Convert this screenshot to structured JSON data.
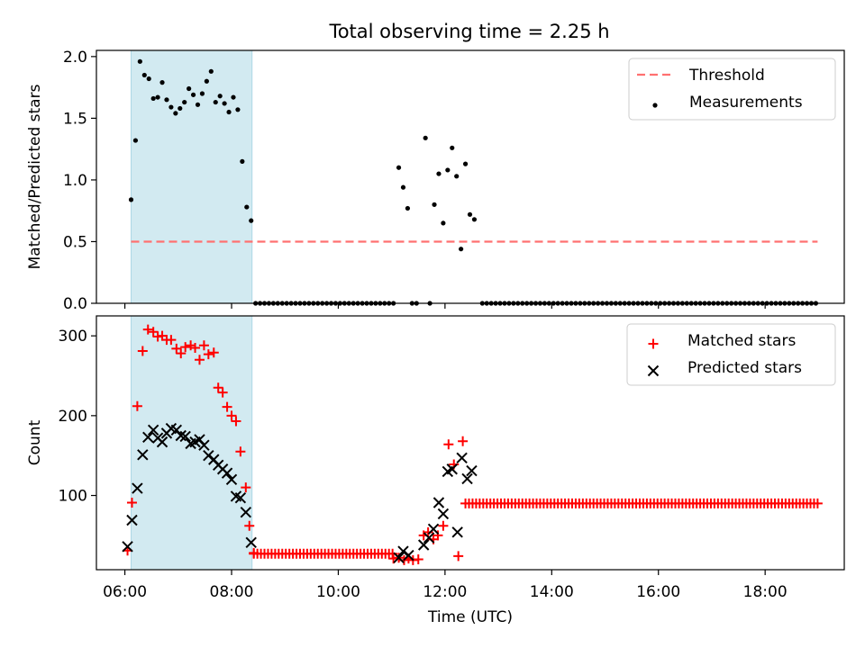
{
  "figure": {
    "title": "Total observing time = 2.25 h"
  },
  "chart_data": [
    {
      "type": "scatter",
      "panel": "top",
      "title": "Total observing time = 2.25 h",
      "xlabel": "",
      "ylabel": "Matched/Predicted stars",
      "xlim": [
        "05:28",
        "19:29"
      ],
      "ylim": [
        0,
        2.05
      ],
      "xticks": [
        "06:00",
        "08:00",
        "10:00",
        "12:00",
        "14:00",
        "16:00",
        "18:00"
      ],
      "yticks": [
        "0.0",
        "0.5",
        "1.0",
        "1.5",
        "2.0"
      ],
      "shaded_interval": [
        "06:07",
        "08:23"
      ],
      "shaded_color": "#add8e6",
      "legend": {
        "placement": "top-right",
        "entries": [
          "Threshold",
          "Measurements"
        ]
      },
      "series": [
        {
          "name": "Threshold",
          "kind": "line",
          "style": "dashed",
          "color": "#ff7070",
          "x": [
            "06:07",
            "18:59"
          ],
          "y": [
            0.5,
            0.5
          ]
        },
        {
          "name": "Measurements",
          "kind": "scatter",
          "marker": "dot",
          "color": "#000000",
          "points": [
            [
              "06:07",
              0.84
            ],
            [
              "06:12",
              1.32
            ],
            [
              "06:17",
              1.96
            ],
            [
              "06:22",
              1.85
            ],
            [
              "06:27",
              1.82
            ],
            [
              "06:32",
              1.66
            ],
            [
              "06:37",
              1.67
            ],
            [
              "06:42",
              1.79
            ],
            [
              "06:47",
              1.65
            ],
            [
              "06:52",
              1.59
            ],
            [
              "06:57",
              1.54
            ],
            [
              "07:02",
              1.58
            ],
            [
              "07:07",
              1.63
            ],
            [
              "07:12",
              1.74
            ],
            [
              "07:17",
              1.69
            ],
            [
              "07:22",
              1.61
            ],
            [
              "07:27",
              1.7
            ],
            [
              "07:32",
              1.8
            ],
            [
              "07:37",
              1.88
            ],
            [
              "07:42",
              1.63
            ],
            [
              "07:47",
              1.68
            ],
            [
              "07:52",
              1.62
            ],
            [
              "07:57",
              1.55
            ],
            [
              "08:02",
              1.67
            ],
            [
              "08:07",
              1.57
            ],
            [
              "08:12",
              1.15
            ],
            [
              "08:17",
              0.78
            ],
            [
              "08:22",
              0.67
            ],
            [
              "11:08",
              1.1
            ],
            [
              "11:13",
              0.94
            ],
            [
              "11:18",
              0.77
            ],
            [
              "11:38",
              1.34
            ],
            [
              "11:48",
              0.8
            ],
            [
              "11:53",
              1.05
            ],
            [
              "11:58",
              0.65
            ],
            [
              "12:03",
              1.08
            ],
            [
              "12:08",
              1.26
            ],
            [
              "12:13",
              1.03
            ],
            [
              "12:18",
              0.44
            ],
            [
              "12:23",
              1.13
            ],
            [
              "12:28",
              0.72
            ],
            [
              "12:33",
              0.68
            ],
            [
              "11:23",
              0.0
            ],
            [
              "11:28",
              0.0
            ],
            [
              "11:43",
              0.0
            ]
          ],
          "zero_run": {
            "from": "08:27",
            "to": "18:59",
            "step_minutes": 5,
            "value": 0.0,
            "gap": [
              "11:06",
              "12:37"
            ]
          }
        }
      ]
    },
    {
      "type": "scatter",
      "panel": "bottom",
      "xlabel": "Time (UTC)",
      "ylabel": "Count",
      "xlim": [
        "05:28",
        "19:29"
      ],
      "ylim": [
        7,
        325
      ],
      "xticks": [
        "06:00",
        "08:00",
        "10:00",
        "12:00",
        "14:00",
        "16:00",
        "18:00"
      ],
      "yticks": [
        "100",
        "200",
        "300"
      ],
      "shaded_interval": [
        "06:07",
        "08:23"
      ],
      "shaded_color": "#add8e6",
      "legend": {
        "placement": "top-right",
        "entries": [
          "Matched stars",
          "Predicted stars"
        ]
      },
      "series": [
        {
          "name": "Matched stars",
          "marker": "plus",
          "color": "#ff0000",
          "points": [
            [
              "06:03",
              31
            ],
            [
              "06:08",
              91
            ],
            [
              "06:14",
              212
            ],
            [
              "06:20",
              281
            ],
            [
              "06:26",
              308
            ],
            [
              "06:32",
              305
            ],
            [
              "06:37",
              299
            ],
            [
              "06:42",
              300
            ],
            [
              "06:47",
              295
            ],
            [
              "06:52",
              295
            ],
            [
              "06:58",
              284
            ],
            [
              "07:03",
              278
            ],
            [
              "07:08",
              286
            ],
            [
              "07:14",
              288
            ],
            [
              "07:19",
              285
            ],
            [
              "07:24",
              270
            ],
            [
              "07:29",
              288
            ],
            [
              "07:34",
              277
            ],
            [
              "07:40",
              279
            ],
            [
              "07:45",
              235
            ],
            [
              "07:50",
              229
            ],
            [
              "07:55",
              211
            ],
            [
              "08:00",
              200
            ],
            [
              "08:05",
              193
            ],
            [
              "08:10",
              155
            ],
            [
              "08:16",
              110
            ],
            [
              "08:20",
              62
            ],
            [
              "08:25",
              28
            ],
            [
              "11:02",
              21
            ],
            [
              "11:08",
              22
            ],
            [
              "11:14",
              19
            ],
            [
              "11:19",
              21
            ],
            [
              "11:24",
              19
            ],
            [
              "11:30",
              20
            ],
            [
              "11:36",
              50
            ],
            [
              "11:41",
              54
            ],
            [
              "11:47",
              45
            ],
            [
              "11:52",
              50
            ],
            [
              "11:58",
              62
            ],
            [
              "12:04",
              164
            ],
            [
              "12:10",
              139
            ],
            [
              "12:15",
              24
            ],
            [
              "12:20",
              168
            ]
          ],
          "flat_runs": [
            {
              "from": "08:25",
              "to": "11:02",
              "step_minutes": 4,
              "value": 27
            },
            {
              "from": "12:23",
              "to": "18:59",
              "step_minutes": 4,
              "value": 90
            }
          ]
        },
        {
          "name": "Predicted stars",
          "marker": "x",
          "color": "#000000",
          "points": [
            [
              "06:03",
              36
            ],
            [
              "06:08",
              69
            ],
            [
              "06:14",
              109
            ],
            [
              "06:20",
              151
            ],
            [
              "06:26",
              173
            ],
            [
              "06:32",
              182
            ],
            [
              "06:37",
              172
            ],
            [
              "06:42",
              167
            ],
            [
              "06:47",
              178
            ],
            [
              "06:52",
              184
            ],
            [
              "06:58",
              182
            ],
            [
              "07:03",
              175
            ],
            [
              "07:08",
              174
            ],
            [
              "07:14",
              165
            ],
            [
              "07:19",
              167
            ],
            [
              "07:24",
              170
            ],
            [
              "07:29",
              163
            ],
            [
              "07:34",
              150
            ],
            [
              "07:40",
              145
            ],
            [
              "07:45",
              138
            ],
            [
              "07:50",
              133
            ],
            [
              "07:55",
              128
            ],
            [
              "08:00",
              120
            ],
            [
              "08:05",
              99
            ],
            [
              "08:10",
              97
            ],
            [
              "08:16",
              79
            ],
            [
              "08:22",
              41
            ],
            [
              "11:08",
              22
            ],
            [
              "11:13",
              30
            ],
            [
              "11:19",
              25
            ],
            [
              "11:36",
              38
            ],
            [
              "11:42",
              47
            ],
            [
              "11:47",
              58
            ],
            [
              "11:53",
              91
            ],
            [
              "11:58",
              77
            ],
            [
              "12:03",
              130
            ],
            [
              "12:08",
              133
            ],
            [
              "12:14",
              54
            ],
            [
              "12:19",
              147
            ],
            [
              "12:25",
              121
            ],
            [
              "12:30",
              131
            ]
          ]
        }
      ]
    }
  ]
}
